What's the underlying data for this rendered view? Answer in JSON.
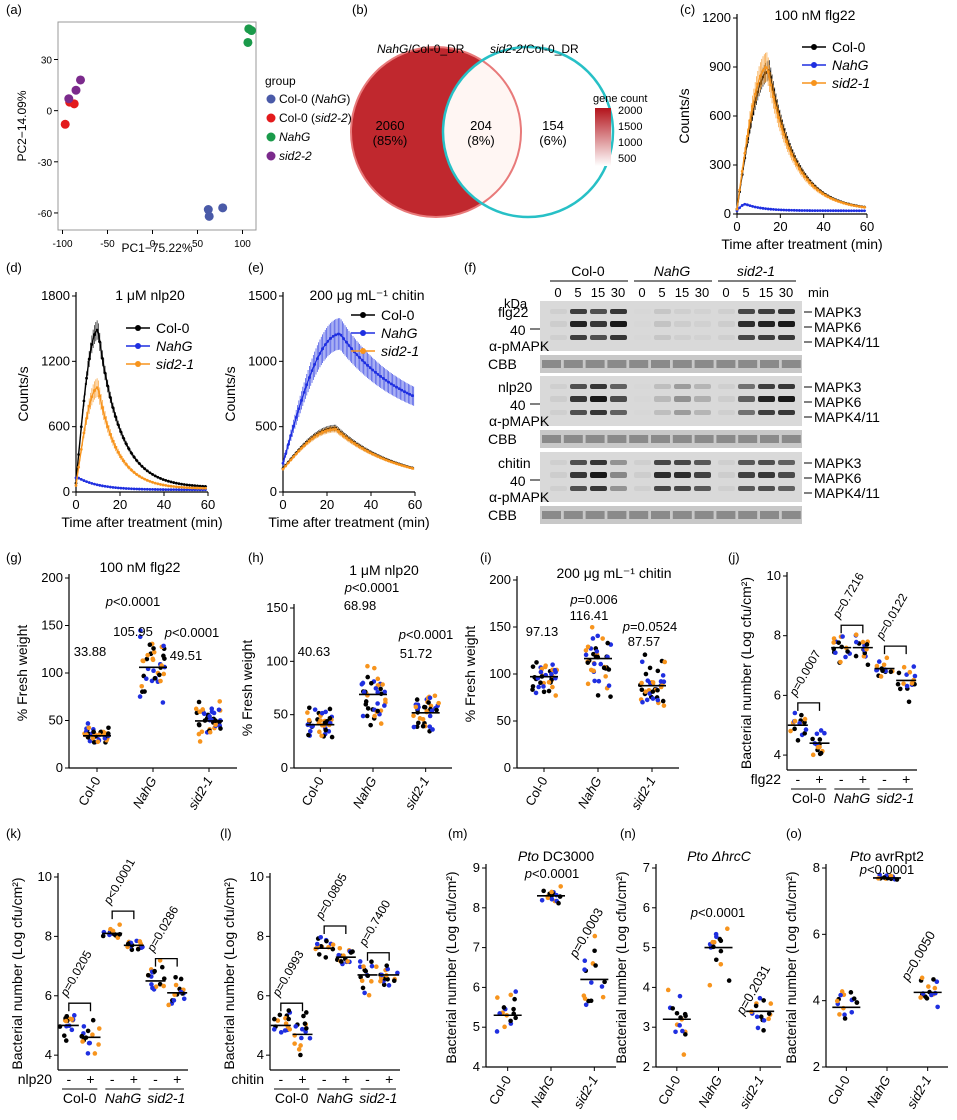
{
  "colors": {
    "black": "#000000",
    "blue": "#1f2fe0",
    "orange": "#f7941d",
    "red": "#e31a1c",
    "green": "#1a9a4a",
    "purple": "#7b2a8c",
    "slate": "#4a5aa8",
    "venn_left": "#c0282e",
    "venn_right": "#27c0c6",
    "pval_red": "#e31a1c"
  },
  "chart_data": [
    {
      "id": "a",
      "panel_label": "(a)",
      "type": "scatter",
      "xlabel": "PC1−75.22%",
      "ylabel": "PC2−14.09%",
      "xlim": [
        -105,
        115
      ],
      "ylim": [
        -70,
        52
      ],
      "xticks": [
        -100,
        -50,
        0,
        50,
        100
      ],
      "yticks": [
        -60,
        -30,
        0,
        30
      ],
      "legend": {
        "title": "group",
        "entries": [
          {
            "prefix": "Col-0 (",
            "italic": "NahG",
            "suffix": ")",
            "color": "#4a5aa8"
          },
          {
            "prefix": "Col-0 (",
            "italic": "sid2-2",
            "suffix": ")",
            "color": "#e31a1c"
          },
          {
            "prefix": "",
            "italic": "NahG",
            "suffix": "",
            "color": "#1a9a4a"
          },
          {
            "prefix": "",
            "italic": "sid2-2",
            "suffix": "",
            "color": "#7b2a8c"
          }
        ]
      },
      "series": [
        {
          "group": 0,
          "points": [
            [
              62,
              -58
            ],
            [
              63,
              -62
            ],
            [
              78,
              -57
            ]
          ]
        },
        {
          "group": 1,
          "points": [
            [
              -97,
              -8
            ],
            [
              -92,
              5
            ],
            [
              -87,
              4
            ]
          ]
        },
        {
          "group": 2,
          "points": [
            [
              106,
              40
            ],
            [
              107,
              48
            ],
            [
              110,
              47
            ]
          ]
        },
        {
          "group": 3,
          "points": [
            [
              -93,
              7
            ],
            [
              -85,
              12
            ],
            [
              -80,
              18
            ]
          ]
        }
      ]
    },
    {
      "id": "b",
      "panel_label": "(b)",
      "type": "venn",
      "left_title_italic": "NahG",
      "left_title_rest": "/Col-0_DR",
      "right_title_italic": "sid2-2",
      "right_title_rest": "/Col-0_DR",
      "regions": [
        {
          "count": "2060",
          "pct": "(85%)"
        },
        {
          "count": "204",
          "pct": "(8%)"
        },
        {
          "count": "154",
          "pct": "(6%)"
        }
      ],
      "colorbar": {
        "title": "gene count",
        "ticks": [
          "2000",
          "1500",
          "1000",
          "500"
        ]
      }
    },
    {
      "id": "c",
      "panel_label": "(c)",
      "type": "line",
      "title": "100 nM flg22",
      "xlabel": "Time after treatment (min)",
      "ylabel": "Counts/s",
      "xlim": [
        0,
        60
      ],
      "ylim": [
        0,
        1200
      ],
      "xticks": [
        0,
        20,
        40,
        60
      ],
      "yticks": [
        0,
        300,
        600,
        900,
        1200
      ],
      "series": [
        {
          "name": "Col-0",
          "italic": false,
          "color": "#000000",
          "peak": 880,
          "tpeak": 15,
          "start": 30,
          "decay": 12,
          "tail": 20,
          "err": 0.07
        },
        {
          "name": "NahG",
          "italic": true,
          "color": "#1f2fe0",
          "peak": 60,
          "tpeak": 4,
          "start": 20,
          "decay": 8,
          "tail": 20,
          "err": 0.1
        },
        {
          "name": "sid2-1",
          "italic": true,
          "color": "#f7941d",
          "peak": 900,
          "tpeak": 14,
          "start": 30,
          "decay": 12,
          "tail": 20,
          "err": 0.1
        }
      ]
    },
    {
      "id": "d",
      "panel_label": "(d)",
      "type": "line",
      "title": "1 μM nlp20",
      "xlabel": "Time after treatment (min)",
      "ylabel": "Counts/s",
      "xlim": [
        0,
        60
      ],
      "ylim": [
        0,
        1800
      ],
      "xticks": [
        0,
        20,
        40,
        60
      ],
      "yticks": [
        0,
        600,
        1200,
        1800
      ],
      "series": [
        {
          "name": "Col-0",
          "italic": false,
          "color": "#000000",
          "peak": 1490,
          "tpeak": 10,
          "start": 80,
          "decay": 10,
          "tail": 40,
          "err": 0.06
        },
        {
          "name": "NahG",
          "italic": true,
          "color": "#1f2fe0",
          "peak": 130,
          "tpeak": 1,
          "start": 130,
          "decay": 10,
          "tail": 20,
          "err": 0.05
        },
        {
          "name": "sid2-1",
          "italic": true,
          "color": "#f7941d",
          "peak": 960,
          "tpeak": 10,
          "start": 60,
          "decay": 9,
          "tail": 30,
          "err": 0.09
        }
      ]
    },
    {
      "id": "e",
      "panel_label": "(e)",
      "type": "line",
      "title": "200 μg mL⁻¹ chitin",
      "xlabel": "Time after treatment (min)",
      "ylabel": "Counts/s",
      "xlim": [
        0,
        60
      ],
      "ylim": [
        0,
        1500
      ],
      "xticks": [
        0,
        20,
        40,
        60
      ],
      "yticks": [
        0,
        500,
        1000,
        1500
      ],
      "series": [
        {
          "name": "Col-0",
          "italic": false,
          "color": "#000000",
          "peak": 490,
          "tpeak": 24,
          "start": 180,
          "decay": 28,
          "tail": 60,
          "err": 0.05
        },
        {
          "name": "NahG",
          "italic": true,
          "color": "#1f2fe0",
          "peak": 1210,
          "tpeak": 26,
          "start": 220,
          "decay": 30,
          "tail": 500,
          "err": 0.1
        },
        {
          "name": "sid2-1",
          "italic": true,
          "color": "#f7941d",
          "peak": 480,
          "tpeak": 24,
          "start": 175,
          "decay": 28,
          "tail": 60,
          "err": 0.05
        }
      ]
    },
    {
      "id": "g",
      "panel_label": "(g)",
      "type": "scatter",
      "title": "100 nM flg22",
      "ylabel": "% Fresh weight",
      "ylim": [
        0,
        200
      ],
      "yticks": [
        0,
        50,
        100,
        150,
        200
      ],
      "groups": [
        {
          "label": "Col-0",
          "italic": false,
          "mean": 33.88,
          "sd": 7,
          "n": 40,
          "mean_label": "33.88",
          "p": ""
        },
        {
          "label": "NahG",
          "italic": true,
          "mean": 105.95,
          "sd": 24,
          "n": 40,
          "mean_label": "105.95",
          "p": "p<0.0001"
        },
        {
          "label": "sid2-1",
          "italic": true,
          "mean": 49.51,
          "sd": 14,
          "n": 40,
          "mean_label": "49.51",
          "p": "p<0.0001"
        }
      ]
    },
    {
      "id": "h",
      "panel_label": "(h)",
      "type": "scatter",
      "title": "1 μM nlp20",
      "ylabel": "% Fresh weight",
      "ylim": [
        0,
        150
      ],
      "yticks": [
        0,
        50,
        100,
        150
      ],
      "groups": [
        {
          "label": "Col-0",
          "italic": false,
          "mean": 40.63,
          "sd": 10,
          "n": 40,
          "mean_label": "40.63",
          "p": ""
        },
        {
          "label": "NahG",
          "italic": true,
          "mean": 68.98,
          "sd": 20,
          "n": 40,
          "mean_label": "68.98",
          "p": "p<0.0001"
        },
        {
          "label": "sid2-1",
          "italic": true,
          "mean": 51.72,
          "sd": 13,
          "n": 40,
          "mean_label": "51.72",
          "p": "p<0.0001"
        }
      ]
    },
    {
      "id": "i",
      "panel_label": "(i)",
      "type": "scatter",
      "title": "200 μg mL⁻¹ chitin",
      "ylabel": "% Fresh weight",
      "ylim": [
        0,
        200
      ],
      "yticks": [
        0,
        50,
        100,
        150,
        200
      ],
      "groups": [
        {
          "label": "Col-0",
          "italic": false,
          "mean": 97.13,
          "sd": 16,
          "n": 40,
          "mean_label": "97.13",
          "p": ""
        },
        {
          "label": "NahG",
          "italic": true,
          "mean": 116.41,
          "sd": 30,
          "n": 40,
          "mean_label": "116.41",
          "p": "p=0.006"
        },
        {
          "label": "sid2-1",
          "italic": true,
          "mean": 87.57,
          "sd": 17,
          "n": 40,
          "mean_label": "87.57",
          "p": "p=0.0524"
        }
      ]
    },
    {
      "id": "j",
      "panel_label": "(j)",
      "type": "scatter",
      "ylabel": "Bacterial number (Log cfu/cm²)",
      "ylim": [
        3.5,
        10
      ],
      "yticks": [
        4,
        6,
        8,
        10
      ],
      "treatment": "flg22",
      "genotypes": [
        {
          "label": "Col-0",
          "italic": false
        },
        {
          "label": "NahG",
          "italic": true
        },
        {
          "label": "sid2-1",
          "italic": true
        }
      ],
      "groups": [
        {
          "mean": 5.0,
          "sd": 0.35,
          "n": 16
        },
        {
          "mean": 4.4,
          "sd": 0.4,
          "n": 16
        },
        {
          "mean": 7.6,
          "sd": 0.4,
          "n": 16
        },
        {
          "mean": 7.6,
          "sd": 0.35,
          "n": 16
        },
        {
          "mean": 6.9,
          "sd": 0.25,
          "n": 16
        },
        {
          "mean": 6.5,
          "sd": 0.4,
          "n": 16
        }
      ],
      "pvalues": [
        "p=0.0007",
        "p=0.7216",
        "p=0.0122"
      ]
    },
    {
      "id": "k",
      "panel_label": "(k)",
      "type": "scatter",
      "ylabel": "Bacterial number (Log cfu/cm²)",
      "ylim": [
        3.5,
        10
      ],
      "yticks": [
        4,
        6,
        8,
        10
      ],
      "treatment": "nlp20",
      "genotypes": [
        {
          "label": "Col-0",
          "italic": false
        },
        {
          "label": "NahG",
          "italic": true
        },
        {
          "label": "sid2-1",
          "italic": true
        }
      ],
      "groups": [
        {
          "mean": 5.0,
          "sd": 0.4,
          "n": 16
        },
        {
          "mean": 4.6,
          "sd": 0.45,
          "n": 16
        },
        {
          "mean": 8.1,
          "sd": 0.15,
          "n": 16
        },
        {
          "mean": 7.7,
          "sd": 0.15,
          "n": 16
        },
        {
          "mean": 6.5,
          "sd": 0.4,
          "n": 16
        },
        {
          "mean": 6.1,
          "sd": 0.35,
          "n": 16
        }
      ],
      "pvalues": [
        "p=0.0205",
        "p<0.0001",
        "p=0.0286"
      ]
    },
    {
      "id": "l",
      "panel_label": "(l)",
      "type": "scatter",
      "ylabel": "Bacterial number (Log cfu/cm²)",
      "ylim": [
        3.5,
        10
      ],
      "yticks": [
        4,
        6,
        8,
        10
      ],
      "treatment": "chitin",
      "genotypes": [
        {
          "label": "Col-0",
          "italic": false
        },
        {
          "label": "NahG",
          "italic": true
        },
        {
          "label": "sid2-1",
          "italic": true
        }
      ],
      "groups": [
        {
          "mean": 5.0,
          "sd": 0.4,
          "n": 16
        },
        {
          "mean": 4.7,
          "sd": 0.5,
          "n": 16
        },
        {
          "mean": 7.6,
          "sd": 0.35,
          "n": 16
        },
        {
          "mean": 7.3,
          "sd": 0.25,
          "n": 16
        },
        {
          "mean": 6.7,
          "sd": 0.4,
          "n": 16
        },
        {
          "mean": 6.7,
          "sd": 0.35,
          "n": 16
        }
      ],
      "pvalues": [
        "p=0.0993",
        "p=0.0805",
        "p=0.7400"
      ]
    },
    {
      "id": "m",
      "panel_label": "(m)",
      "type": "scatter",
      "title_italic": "Pto",
      "title_rest": " DC3000",
      "ylabel": "Bacterial number (Log cfu/cm²)",
      "ylim": [
        4,
        9
      ],
      "yticks": [
        4,
        5,
        6,
        7,
        8,
        9
      ],
      "groups": [
        {
          "label": "Col-0",
          "italic": false,
          "mean": 5.3,
          "sd": 0.45,
          "n": 16,
          "p": ""
        },
        {
          "label": "NahG",
          "italic": true,
          "mean": 8.3,
          "sd": 0.15,
          "n": 16,
          "p": "p<0.0001"
        },
        {
          "label": "sid2-1",
          "italic": true,
          "mean": 6.2,
          "sd": 0.6,
          "n": 16,
          "p": "p=0.0003"
        }
      ]
    },
    {
      "id": "n",
      "panel_label": "(n)",
      "type": "scatter",
      "title_italic": "Pto ΔhrcC",
      "title_rest": "",
      "ylabel": "Bacterial number (Log cfu/cm²)",
      "ylim": [
        2,
        7
      ],
      "yticks": [
        2,
        3,
        4,
        5,
        6,
        7
      ],
      "groups": [
        {
          "label": "Col-0",
          "italic": false,
          "mean": 3.2,
          "sd": 0.45,
          "n": 16,
          "p": ""
        },
        {
          "label": "NahG",
          "italic": true,
          "mean": 5.0,
          "sd": 0.6,
          "n": 16,
          "p": "p<0.0001"
        },
        {
          "label": "sid2-1",
          "italic": true,
          "mean": 3.4,
          "sd": 0.35,
          "n": 16,
          "p": "p=0.2031"
        }
      ]
    },
    {
      "id": "o",
      "panel_label": "(o)",
      "type": "scatter",
      "title_italic": "Pto",
      "title_rest": " avrRpt2",
      "ylabel": "Bacterial number (Log cfu/cm²)",
      "ylim": [
        2,
        8
      ],
      "yticks": [
        2,
        4,
        6,
        8
      ],
      "groups": [
        {
          "label": "Col-0",
          "italic": false,
          "mean": 3.8,
          "sd": 0.3,
          "n": 16,
          "p": ""
        },
        {
          "label": "NahG",
          "italic": true,
          "mean": 7.7,
          "sd": 0.06,
          "n": 16,
          "p": "p<0.0001"
        },
        {
          "label": "sid2-1",
          "italic": true,
          "mean": 4.25,
          "sd": 0.4,
          "n": 16,
          "p": "p=0.0050"
        }
      ]
    }
  ],
  "blot": {
    "panel_label": "(f)",
    "genotypes": [
      {
        "label": "Col-0",
        "italic": false
      },
      {
        "label": "NahG",
        "italic": true
      },
      {
        "label": "sid2-1",
        "italic": true
      }
    ],
    "timepoints": [
      "0",
      "5",
      "15",
      "30"
    ],
    "min_label": "min",
    "kda_label": "kDa",
    "marker_label": "40",
    "antibody": "α-pMAPK",
    "cbb": "CBB",
    "bands": [
      "MAPK3",
      "MAPK6",
      "MAPK4/11"
    ],
    "rows": [
      {
        "treatment": "flg22",
        "intensity": [
          [
            0.05,
            0.9,
            0.8,
            0.95
          ],
          [
            0,
            0.1,
            0.05,
            0.03
          ],
          [
            0.05,
            0.85,
            0.9,
            0.95
          ]
        ]
      },
      {
        "treatment": "nlp20",
        "intensity": [
          [
            0.05,
            0.8,
            0.95,
            0.7
          ],
          [
            0,
            0.15,
            0.35,
            0.2
          ],
          [
            0.05,
            0.6,
            0.9,
            0.95
          ]
        ]
      },
      {
        "treatment": "chitin",
        "intensity": [
          [
            0.05,
            0.8,
            0.95,
            0.4
          ],
          [
            0.05,
            0.85,
            0.85,
            0.75
          ],
          [
            0.05,
            0.75,
            0.8,
            0.7
          ]
        ]
      }
    ]
  }
}
